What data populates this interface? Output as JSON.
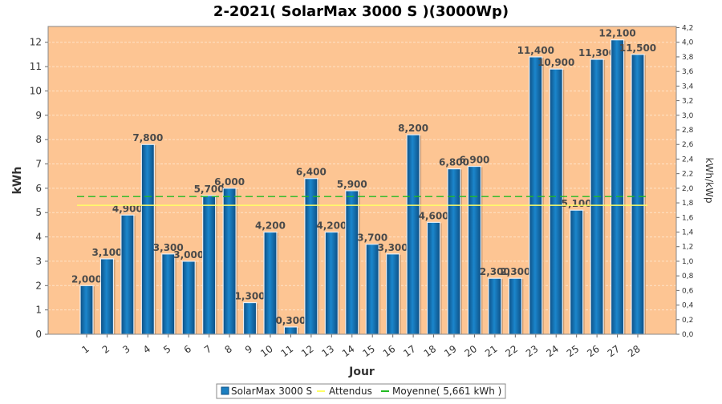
{
  "chart_data": {
    "type": "bar",
    "title": "2-2021( SolarMax 3000 S )(3000Wp)",
    "xlabel": "Jour",
    "ylabel": "kWh",
    "y2label": "kWh/kWp",
    "categories": [
      "1",
      "2",
      "3",
      "4",
      "5",
      "6",
      "7",
      "8",
      "9",
      "10",
      "11",
      "12",
      "13",
      "14",
      "15",
      "16",
      "17",
      "18",
      "19",
      "20",
      "21",
      "22",
      "23",
      "24",
      "25",
      "26",
      "27",
      "28"
    ],
    "series": [
      {
        "name": "SolarMax 3000 S",
        "values": [
          2.0,
          3.1,
          4.9,
          7.8,
          3.3,
          3.0,
          5.7,
          6.0,
          1.3,
          4.2,
          0.3,
          6.4,
          4.2,
          5.9,
          3.7,
          3.3,
          8.2,
          4.6,
          6.8,
          6.9,
          2.3,
          2.3,
          11.4,
          10.9,
          5.1,
          11.3,
          12.1,
          11.5
        ],
        "labels": [
          "2,000",
          "3,100",
          "4,900",
          "7,800",
          "3,300",
          "3,000",
          "5,700",
          "6,000",
          "1,300",
          "4,200",
          "0,300",
          "6,400",
          "4,200",
          "5,900",
          "3,700",
          "3,300",
          "8,200",
          "4,600",
          "6,800",
          "6,900",
          "2,300",
          "2,300",
          "11,400",
          "10,900",
          "5,100",
          "11,300",
          "12,100",
          "11,500"
        ],
        "color": "#1b7fc1"
      }
    ],
    "lines": [
      {
        "name": "Attendus",
        "value": 5.3,
        "color": "#ffff66"
      },
      {
        "name": "Moyenne( 5,661 kWh )",
        "value": 5.661,
        "color": "#22bb22"
      }
    ],
    "ylim": [
      0,
      12.65
    ],
    "yticks": [
      0,
      1,
      2,
      3,
      4,
      5,
      6,
      7,
      8,
      9,
      10,
      11,
      12
    ],
    "y2lim": [
      0,
      4.2167
    ],
    "y2ticks": [
      "0,0",
      "0,2",
      "0,4",
      "0,6",
      "0,8",
      "1,0",
      "1,2",
      "1,4",
      "1,6",
      "1,8",
      "2,0",
      "2,2",
      "2,4",
      "2,6",
      "2,8",
      "3,0",
      "3,2",
      "3,4",
      "3,6",
      "3,8",
      "4,0",
      "4,2"
    ],
    "grid": true,
    "legend_position": "bottom",
    "colors": {
      "plot_bg": "#fdc593",
      "grid": "#ffe3c8",
      "bar": "#1b7fc1"
    }
  }
}
